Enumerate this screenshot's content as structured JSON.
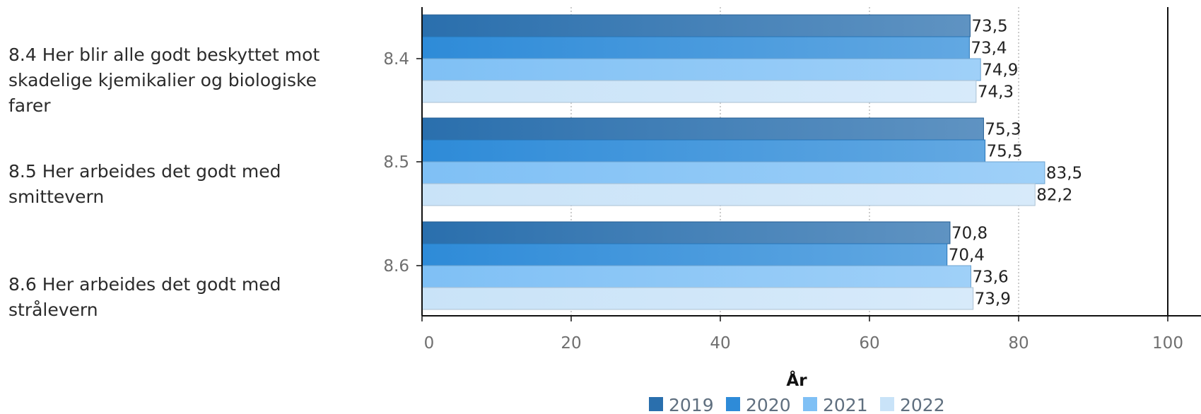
{
  "descriptions": [
    "8.4 Her blir alle godt beskyttet mot skadelige kjemikalier og biologiske farer",
    "8.5 Her arbeides det godt med smittevern",
    "8.6 Her arbeides det godt med strålevern"
  ],
  "chart_data": {
    "type": "bar",
    "orientation": "horizontal",
    "categories": [
      "8.4",
      "8.5",
      "8.6"
    ],
    "series": [
      {
        "name": "2019",
        "values": [
          73.5,
          75.3,
          70.8
        ],
        "color": "#2a6fad"
      },
      {
        "name": "2020",
        "values": [
          73.4,
          75.5,
          70.4
        ],
        "color": "#2e8bd8"
      },
      {
        "name": "2021",
        "values": [
          74.9,
          83.5,
          73.6
        ],
        "color": "#7fc0f5"
      },
      {
        "name": "2022",
        "values": [
          74.3,
          82.2,
          73.9
        ],
        "color": "#c9e3f8"
      }
    ],
    "value_labels": [
      [
        "73,5",
        "75,3",
        "70,8"
      ],
      [
        "73,4",
        "75,5",
        "70,4"
      ],
      [
        "74,9",
        "83,5",
        "73,6"
      ],
      [
        "74,3",
        "82,2",
        "73,9"
      ]
    ],
    "xlim": [
      0,
      100
    ],
    "xticks": [
      0,
      20,
      40,
      60,
      80,
      100
    ],
    "grid": "vertical dotted",
    "legend_title": "År",
    "legend_position": "bottom-center"
  }
}
